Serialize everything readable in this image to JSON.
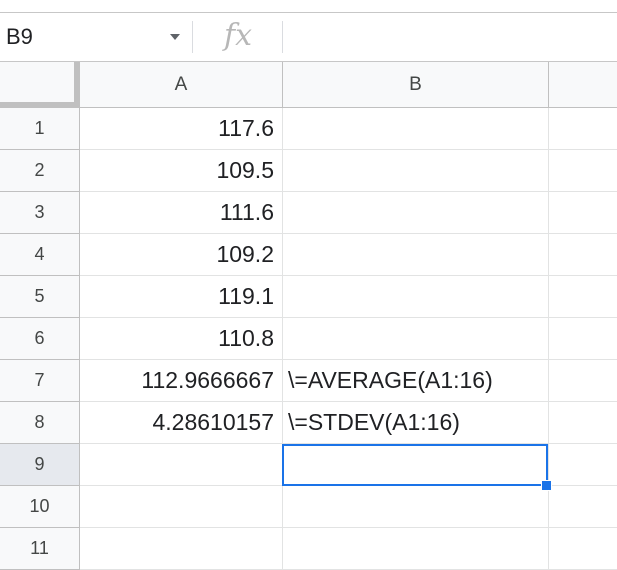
{
  "formula_bar": {
    "name_box": "B9",
    "fx_label": "fx",
    "formula_value": ""
  },
  "columns": [
    "A",
    "B",
    ""
  ],
  "rows": [
    {
      "label": "1",
      "a": "117.6",
      "b": ""
    },
    {
      "label": "2",
      "a": "109.5",
      "b": ""
    },
    {
      "label": "3",
      "a": "111.6",
      "b": ""
    },
    {
      "label": "4",
      "a": "109.2",
      "b": ""
    },
    {
      "label": "5",
      "a": "119.1",
      "b": ""
    },
    {
      "label": "6",
      "a": "110.8",
      "b": ""
    },
    {
      "label": "7",
      "a": "112.9666667",
      "b": "\\=AVERAGE(A1:16)"
    },
    {
      "label": "8",
      "a": "4.28610157",
      "b": "\\=STDEV(A1:16)"
    },
    {
      "label": "9",
      "a": "",
      "b": ""
    },
    {
      "label": "10",
      "a": "",
      "b": ""
    },
    {
      "label": "11",
      "a": "",
      "b": ""
    }
  ],
  "selected_cell": "B9",
  "colors": {
    "selection": "#1a73e8",
    "header_bg": "#f8f9fa",
    "gridline": "#e2e3e3"
  }
}
